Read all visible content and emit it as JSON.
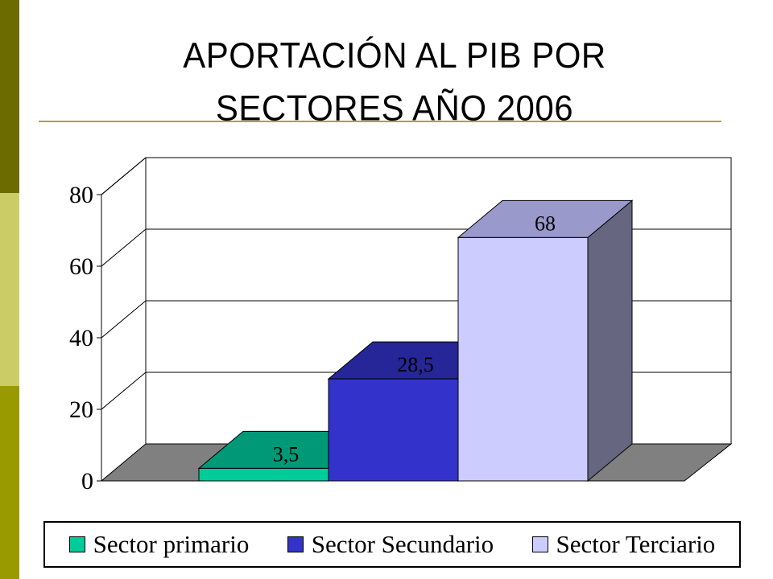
{
  "slide": {
    "title_line1": "APORTACIÓN AL PIB POR",
    "title_line2": "SECTORES AÑO 2006",
    "side_colors": [
      "#6b6b00",
      "#cccc66",
      "#999900"
    ],
    "rule_color": "#a6a24a"
  },
  "chart_data": {
    "type": "bar",
    "title": "APORTACIÓN AL PIB POR SECTORES AÑO 2006",
    "categories": [
      "Sector primario",
      "Sector Secundario",
      "Sector Terciario"
    ],
    "values": [
      3.5,
      28.5,
      68
    ],
    "data_labels": [
      "3,5",
      "28,5",
      "68"
    ],
    "ylim": [
      0,
      80
    ],
    "yticks": [
      0,
      20,
      40,
      60,
      80
    ],
    "ytick_labels": [
      "0",
      "20",
      "40",
      "60",
      "80"
    ],
    "grid": true,
    "legend": "bottom",
    "colors": {
      "front": [
        "#00cc99",
        "#3333cc",
        "#ccccff"
      ],
      "top": [
        "#009977",
        "#262699",
        "#9999cc"
      ],
      "side": [
        "#007f66",
        "#1f1f80",
        "#666680"
      ],
      "floor": "#808080"
    }
  }
}
